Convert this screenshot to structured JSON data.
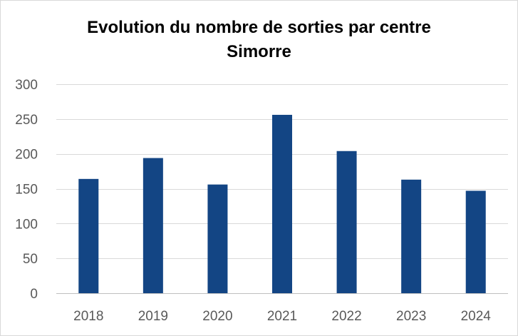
{
  "chart_data": {
    "type": "bar",
    "title": "Evolution du nombre de sorties par centre",
    "subtitle": "Simorre",
    "xlabel": "",
    "ylabel": "",
    "categories": [
      "2018",
      "2019",
      "2020",
      "2021",
      "2022",
      "2023",
      "2024"
    ],
    "values": [
      164,
      194,
      156,
      256,
      204,
      163,
      147
    ],
    "ylim": [
      0,
      300
    ],
    "yticks": [
      0,
      50,
      100,
      150,
      200,
      250,
      300
    ],
    "grid": true,
    "legend": "none",
    "bar_color": "#134584",
    "grid_color": "#d9d9d9",
    "axis_color": "#bfbfbf",
    "tick_color": "#595959"
  }
}
